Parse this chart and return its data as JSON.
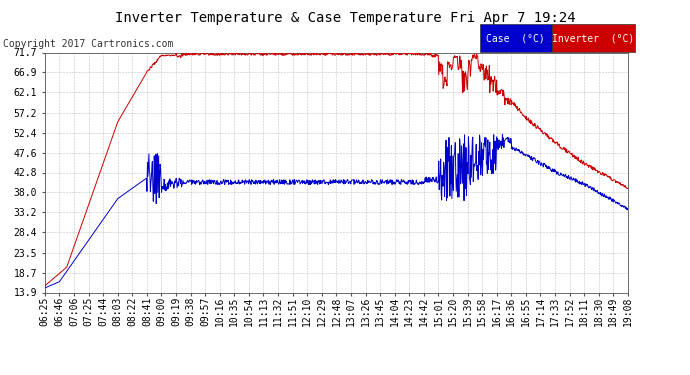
{
  "title": "Inverter Temperature & Case Temperature Fri Apr 7 19:24",
  "copyright": "Copyright 2017 Cartronics.com",
  "bg_color": "#ffffff",
  "plot_bg_color": "#ffffff",
  "grid_color": "#999999",
  "yticks": [
    13.9,
    18.7,
    23.5,
    28.4,
    33.2,
    38.0,
    42.8,
    47.6,
    52.4,
    57.2,
    62.1,
    66.9,
    71.7
  ],
  "ymin": 13.9,
  "ymax": 71.7,
  "xtick_labels": [
    "06:25",
    "06:46",
    "07:06",
    "07:25",
    "07:44",
    "08:03",
    "08:22",
    "08:41",
    "09:00",
    "09:19",
    "09:38",
    "09:57",
    "10:16",
    "10:35",
    "10:54",
    "11:13",
    "11:32",
    "11:51",
    "12:10",
    "12:29",
    "12:48",
    "13:07",
    "13:26",
    "13:45",
    "14:04",
    "14:23",
    "14:42",
    "15:01",
    "15:20",
    "15:39",
    "15:58",
    "16:17",
    "16:36",
    "16:55",
    "17:14",
    "17:33",
    "17:52",
    "18:11",
    "18:30",
    "18:49",
    "19:08"
  ],
  "red_color": "#cc0000",
  "blue_color": "#0000cc",
  "black_color": "#000000",
  "title_fontsize": 10,
  "copyright_fontsize": 7,
  "tick_fontsize": 7,
  "legend_case_label": "Case  (°C)",
  "legend_inv_label": "Inverter  (°C)"
}
